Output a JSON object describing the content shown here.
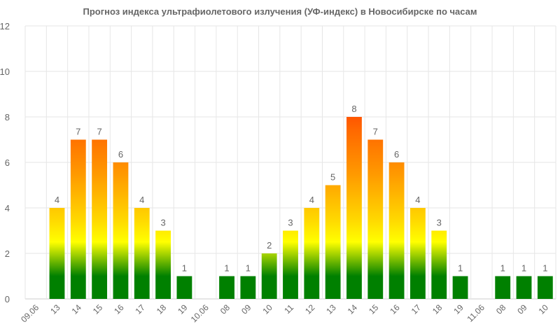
{
  "chart_data": {
    "type": "bar",
    "title": "Прогноз индекса ультрафиолетового излучения (УФ-индекс) в Новосибирске по часам",
    "xlabel": "",
    "ylabel": "",
    "ylim": [
      0,
      12
    ],
    "yticks": [
      "0",
      "2",
      "4",
      "6",
      "8",
      "10",
      "12"
    ],
    "grid": true,
    "legend": "none",
    "categories": [
      "09.06",
      "13",
      "14",
      "15",
      "16",
      "17",
      "18",
      "19",
      "10.06",
      "08",
      "09",
      "10",
      "11",
      "12",
      "13",
      "14",
      "15",
      "16",
      "17",
      "18",
      "19",
      "11.06",
      "08",
      "09",
      "10"
    ],
    "values": [
      null,
      4,
      7,
      7,
      6,
      4,
      3,
      1,
      null,
      1,
      1,
      2,
      3,
      4,
      5,
      8,
      7,
      6,
      4,
      3,
      1,
      null,
      1,
      1,
      1
    ],
    "data_labels": [
      "",
      "4",
      "7",
      "7",
      "6",
      "4",
      "3",
      "1",
      "",
      "1",
      "1",
      "2",
      "3",
      "4",
      "5",
      "8",
      "7",
      "6",
      "4",
      "3",
      "1",
      "",
      "1",
      "1",
      "1"
    ],
    "colors": {
      "low": "#008000",
      "moderate": "#ffff00",
      "high": "#ff8c00",
      "very_high": "#ff2200",
      "grid": "#e6e6e6",
      "text": "#666666"
    }
  }
}
